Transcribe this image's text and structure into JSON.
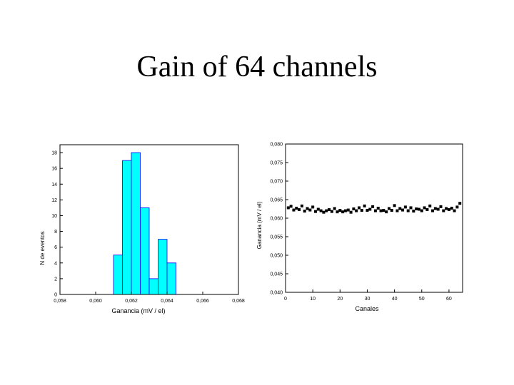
{
  "slide": {
    "title": "Gain of 64 channels"
  },
  "chart_data": [
    {
      "type": "bar",
      "subtype": "histogram",
      "bar_color": "#00ffff",
      "bar_edge_color": "#0000ff",
      "xlabel": "Ganancia  (mV / el)",
      "ylabel": "N de eventos",
      "xlim": [
        0.058,
        0.068
      ],
      "ylim": [
        0,
        19
      ],
      "x_ticks": [
        0.058,
        0.06,
        0.062,
        0.064,
        0.066,
        0.068
      ],
      "x_tick_labels": [
        "0,058",
        "0,060",
        "0,062",
        "0,064",
        "0,066",
        "0,068"
      ],
      "y_ticks": [
        0,
        2,
        4,
        6,
        8,
        10,
        12,
        14,
        16,
        18
      ],
      "y_tick_labels": [
        "0",
        "2",
        "4",
        "6",
        "8",
        "10",
        "12",
        "14",
        "16",
        "18"
      ],
      "bin_width": 0.0005,
      "bins": [
        {
          "start": 0.061,
          "value": 5
        },
        {
          "start": 0.0615,
          "value": 17
        },
        {
          "start": 0.062,
          "value": 18
        },
        {
          "start": 0.0625,
          "value": 11
        },
        {
          "start": 0.063,
          "value": 2
        },
        {
          "start": 0.0635,
          "value": 7
        },
        {
          "start": 0.064,
          "value": 4
        }
      ]
    },
    {
      "type": "scatter",
      "marker_color": "#000000",
      "xlabel": "Canales",
      "ylabel": "Ganancia (mV / el)",
      "xlim": [
        0,
        65
      ],
      "ylim": [
        0.04,
        0.08
      ],
      "x_ticks": [
        0,
        10,
        20,
        30,
        40,
        50,
        60
      ],
      "x_tick_labels": [
        "0",
        "10",
        "20",
        "30",
        "40",
        "50",
        "60"
      ],
      "y_ticks": [
        0.04,
        0.045,
        0.05,
        0.055,
        0.06,
        0.065,
        0.07,
        0.075,
        0.08
      ],
      "y_tick_labels": [
        "0,040",
        "0,045",
        "0,050",
        "0,055",
        "0,060",
        "0,065",
        "0,070",
        "0,075",
        "0,080"
      ],
      "series": [
        {
          "x": [
            1,
            2,
            3,
            4,
            5,
            6,
            7,
            8,
            9,
            10,
            11,
            12,
            13,
            14,
            15,
            16,
            17,
            18,
            19,
            20,
            21,
            22,
            23,
            24,
            25,
            26,
            27,
            28,
            29,
            30,
            31,
            32,
            33,
            34,
            35,
            36,
            37,
            38,
            39,
            40,
            41,
            42,
            43,
            44,
            45,
            46,
            47,
            48,
            49,
            50,
            51,
            52,
            53,
            54,
            55,
            56,
            57,
            58,
            59,
            60,
            61,
            62,
            63,
            64
          ],
          "y": [
            0.0628,
            0.0632,
            0.0622,
            0.0627,
            0.0623,
            0.0633,
            0.0619,
            0.0626,
            0.0622,
            0.063,
            0.0618,
            0.0624,
            0.062,
            0.0616,
            0.062,
            0.0623,
            0.0618,
            0.0626,
            0.0617,
            0.0621,
            0.0617,
            0.062,
            0.0622,
            0.0616,
            0.0625,
            0.062,
            0.0628,
            0.0621,
            0.0633,
            0.0621,
            0.0624,
            0.0631,
            0.062,
            0.0627,
            0.062,
            0.0621,
            0.0617,
            0.0626,
            0.0621,
            0.0634,
            0.062,
            0.0626,
            0.0622,
            0.063,
            0.062,
            0.0628,
            0.0619,
            0.0625,
            0.0624,
            0.062,
            0.0628,
            0.0623,
            0.0633,
            0.062,
            0.0626,
            0.0624,
            0.0631,
            0.062,
            0.0626,
            0.0623,
            0.0627,
            0.062,
            0.063,
            0.064
          ]
        }
      ]
    }
  ]
}
